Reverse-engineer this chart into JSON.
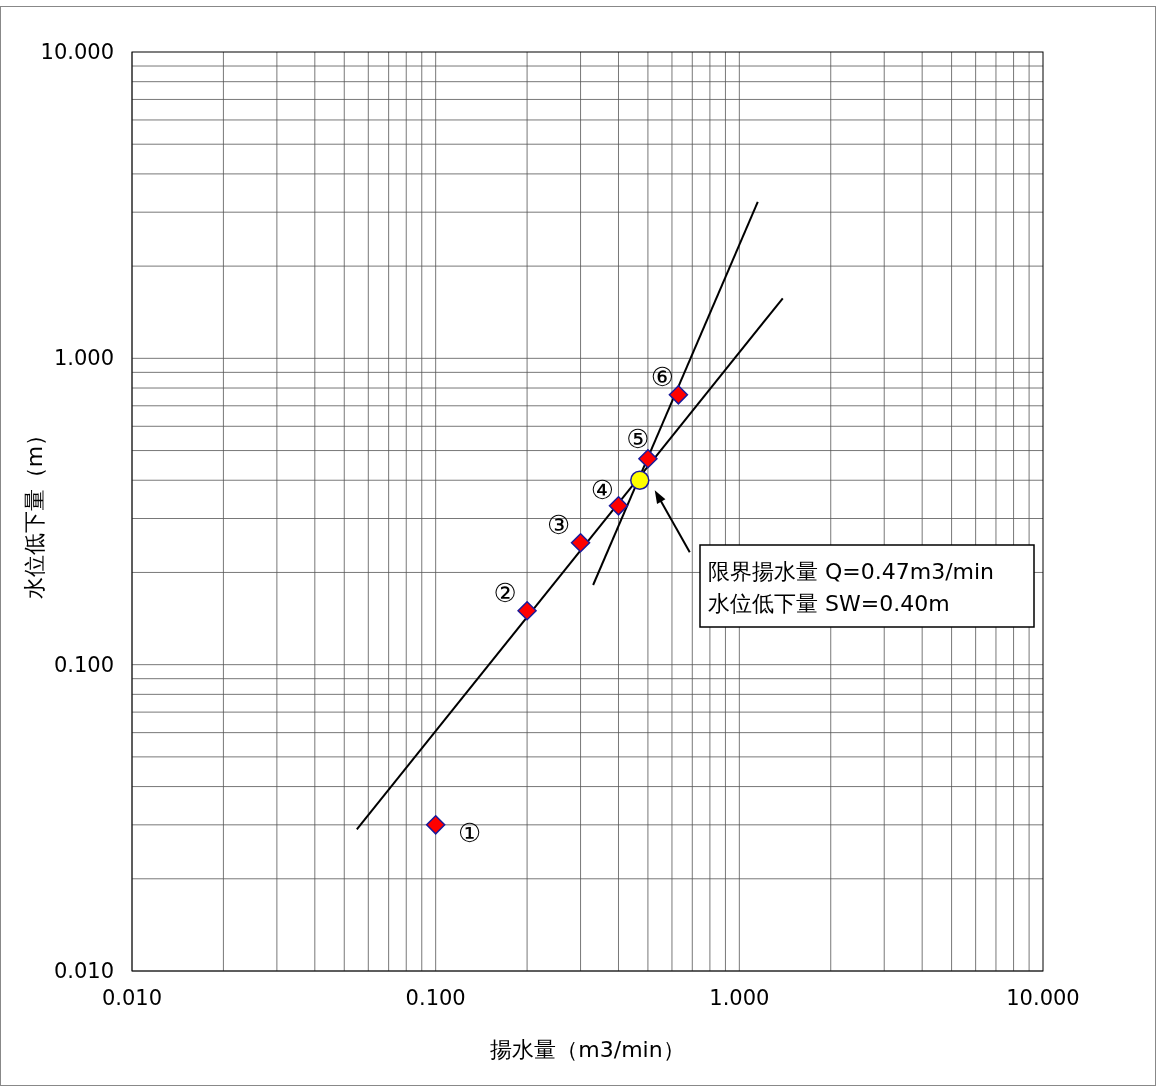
{
  "chart_data": {
    "type": "scatter",
    "xlabel": "揚水量（m3/min）",
    "ylabel": "水位低下量（m）",
    "log": "xy",
    "grid": true,
    "marker": "diamond",
    "xlim": [
      0.01,
      10
    ],
    "ylim": [
      0.01,
      10
    ],
    "xticks": [
      {
        "value": 0.01,
        "label": "0.010"
      },
      {
        "value": 0.1,
        "label": "0.100"
      },
      {
        "value": 1,
        "label": "1.000"
      },
      {
        "value": 10,
        "label": "10.000"
      }
    ],
    "yticks": [
      {
        "value": 0.01,
        "label": "0.010"
      },
      {
        "value": 0.1,
        "label": "0.100"
      },
      {
        "value": 1,
        "label": "1.000"
      },
      {
        "value": 10,
        "label": "10.000"
      }
    ],
    "series": [
      {
        "type": "line",
        "marker": "none",
        "color": "#000000",
        "x": [
          0.055,
          1.39
        ],
        "values": [
          0.029,
          1.57
        ]
      },
      {
        "type": "line",
        "marker": "none",
        "color": "#000000",
        "x": [
          0.33,
          1.15
        ],
        "values": [
          0.182,
          3.24
        ]
      },
      {
        "color": "#ff0000",
        "x": [
          0.1,
          0.2,
          0.3,
          0.4,
          0.5,
          0.63
        ],
        "values": [
          0.03,
          0.15,
          0.25,
          0.33,
          0.47,
          0.76
        ]
      },
      {
        "marker": "circle",
        "color": "#ffff00",
        "x": [
          0.47
        ],
        "values": [
          0.4
        ]
      }
    ],
    "annotations": [
      {
        "text": "①",
        "x": 0.1,
        "y": 0.03
      },
      {
        "text": "②",
        "x": 0.2,
        "y": 0.15
      },
      {
        "text": "③",
        "x": 0.3,
        "y": 0.25
      },
      {
        "text": "④",
        "x": 0.4,
        "y": 0.33
      },
      {
        "text": "⑤",
        "x": 0.5,
        "y": 0.47
      },
      {
        "text": "⑥",
        "x": 0.63,
        "y": 0.76
      },
      "限界揚水量 Q=0.47m3/min\n水位低下量 SW=0.40m"
    ]
  }
}
